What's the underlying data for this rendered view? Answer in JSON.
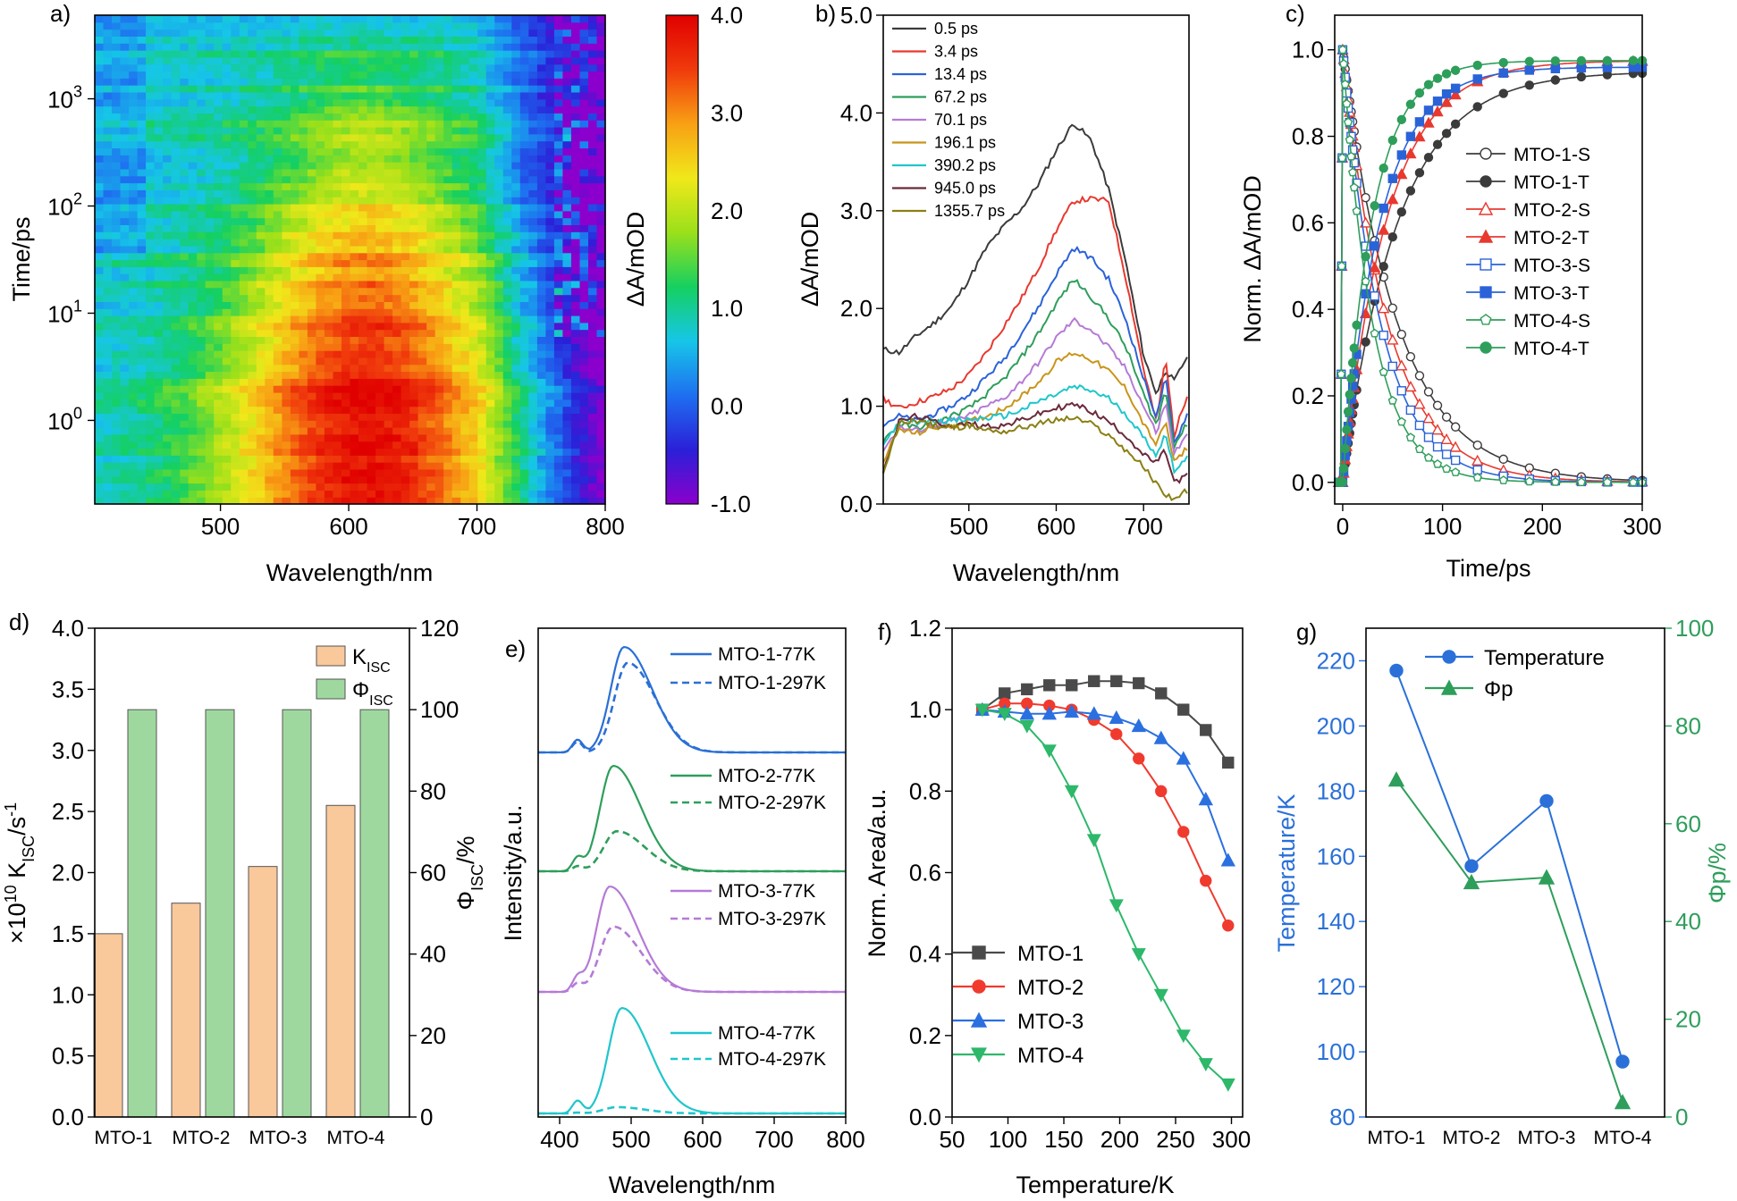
{
  "chart_data": [
    {
      "panel": "a)",
      "type": "heatmap",
      "xlabel": "Wavelength/nm",
      "ylabel": "Time/ps",
      "colorbar_label": "ΔA/mOD",
      "xlim": [
        402,
        800
      ],
      "ylim_log10": [
        -0.78,
        3.78
      ],
      "x_ticks": [
        500,
        600,
        700,
        800
      ],
      "x_tick_labels": [
        "500",
        "600",
        "700",
        "800"
      ],
      "y_ticks_log10": [
        0,
        1,
        2,
        3
      ],
      "y_tick_bases": [
        "10",
        "10",
        "10",
        "10"
      ],
      "y_tick_exps": [
        "0",
        "1",
        "2",
        "3"
      ],
      "colorbar_ticks": [
        4.0,
        3.0,
        2.0,
        1.0,
        0.0,
        -1.0
      ],
      "colorbar_tick_labels": [
        "4.0",
        "3.0",
        "2.0",
        "1.0",
        "0.0",
        "-1.0"
      ],
      "clim": [
        -1.0,
        4.0
      ],
      "colormap": [
        "#8B00CC",
        "#2A20D8",
        "#1E6FF0",
        "#16C6E8",
        "#15D060",
        "#9BE01A",
        "#F0E81A",
        "#F8A014",
        "#F03A0C",
        "#E00000"
      ],
      "note_signal_peak_nm": 620,
      "note_signal_peak_mOD": 4.0
    },
    {
      "panel": "b)",
      "type": "line",
      "xlabel": "Wavelength/nm",
      "ylabel": "ΔA/mOD",
      "xlim": [
        402,
        752
      ],
      "ylim": [
        0,
        5
      ],
      "x_ticks": [
        500,
        600,
        700
      ],
      "x_tick_labels": [
        "500",
        "600",
        "700"
      ],
      "y_ticks": [
        0,
        1,
        2,
        3,
        4,
        5
      ],
      "y_tick_labels": [
        "0.0",
        "1.0",
        "2.0",
        "3.0",
        "4.0",
        "5.0"
      ],
      "x": [
        402,
        420,
        440,
        460,
        480,
        500,
        520,
        540,
        560,
        580,
        600,
        620,
        640,
        660,
        680,
        700,
        715,
        725,
        735,
        752
      ],
      "series": [
        {
          "name": "0.5 ps",
          "color": "#3b3b3b",
          "values": [
            1.58,
            1.55,
            1.72,
            1.85,
            2.02,
            2.3,
            2.62,
            2.84,
            3.02,
            3.28,
            3.62,
            3.9,
            3.72,
            3.22,
            2.46,
            1.52,
            1.12,
            1.38,
            1.25,
            1.55
          ]
        },
        {
          "name": "3.4 ps",
          "color": "#e8392f",
          "values": [
            1.08,
            0.98,
            1.04,
            1.1,
            1.18,
            1.32,
            1.55,
            1.82,
            2.1,
            2.42,
            2.8,
            3.1,
            3.12,
            3.1,
            2.3,
            1.38,
            0.82,
            1.5,
            0.7,
            1.18
          ]
        },
        {
          "name": "13.4 ps",
          "color": "#2a63d8",
          "values": [
            0.82,
            0.9,
            0.85,
            0.92,
            1.0,
            1.12,
            1.3,
            1.48,
            1.75,
            2.02,
            2.35,
            2.62,
            2.52,
            2.3,
            1.88,
            1.28,
            0.88,
            1.3,
            0.62,
            0.96
          ]
        },
        {
          "name": "67.2 ps",
          "color": "#2e9e5b",
          "values": [
            0.65,
            0.82,
            0.78,
            0.82,
            0.9,
            0.98,
            1.12,
            1.28,
            1.5,
            1.75,
            2.05,
            2.3,
            2.12,
            1.9,
            1.6,
            1.12,
            0.8,
            1.18,
            0.6,
            0.85
          ]
        },
        {
          "name": "70.1 ps",
          "color": "#b57ad6",
          "values": [
            0.55,
            0.78,
            0.75,
            0.8,
            0.85,
            0.9,
            1.0,
            1.08,
            1.25,
            1.45,
            1.7,
            1.88,
            1.78,
            1.6,
            1.38,
            1.0,
            0.72,
            1.05,
            0.52,
            0.72
          ]
        },
        {
          "name": "196.1 ps",
          "color": "#c9951a",
          "values": [
            0.45,
            0.76,
            0.72,
            0.78,
            0.8,
            0.84,
            0.9,
            0.98,
            1.1,
            1.25,
            1.45,
            1.55,
            1.48,
            1.36,
            1.18,
            0.82,
            0.6,
            0.85,
            0.42,
            0.6
          ]
        },
        {
          "name": "390.2 ps",
          "color": "#1fc6cc",
          "values": [
            0.6,
            0.84,
            0.84,
            0.86,
            0.85,
            0.86,
            0.88,
            0.9,
            0.96,
            1.05,
            1.12,
            1.2,
            1.16,
            1.08,
            0.92,
            0.68,
            0.5,
            0.72,
            0.35,
            0.48
          ]
        },
        {
          "name": "945.0 ps",
          "color": "#6b2a3a",
          "values": [
            0.35,
            0.84,
            0.9,
            0.84,
            0.8,
            0.82,
            0.8,
            0.8,
            0.86,
            0.92,
            0.98,
            1.02,
            0.95,
            0.84,
            0.7,
            0.5,
            0.42,
            0.55,
            0.22,
            0.3
          ]
        },
        {
          "name": "1355.7 ps",
          "color": "#8a8014",
          "values": [
            0.3,
            0.82,
            0.86,
            0.8,
            0.78,
            0.8,
            0.76,
            0.74,
            0.78,
            0.82,
            0.86,
            0.88,
            0.82,
            0.7,
            0.55,
            0.38,
            0.2,
            0.1,
            0.05,
            0.15
          ]
        }
      ]
    },
    {
      "panel": "c)",
      "type": "line",
      "xlabel": "Time/ps",
      "ylabel": "Norm. ΔA/mOD",
      "xlim": [
        -8,
        300
      ],
      "ylim": [
        -0.05,
        1.08
      ],
      "x_ticks": [
        0,
        100,
        200,
        300
      ],
      "x_tick_labels": [
        "0",
        "100",
        "200",
        "300"
      ],
      "y_ticks": [
        0,
        0.2,
        0.4,
        0.6,
        0.8,
        1.0
      ],
      "y_tick_labels": [
        "0.0",
        "0.2",
        "0.4",
        "0.6",
        "0.8",
        "1.0"
      ],
      "series": [
        {
          "name": "MTO-1-S",
          "color": "#3b3b3b",
          "marker": "circle-open",
          "tau": 55,
          "end": 0
        },
        {
          "name": "MTO-1-T",
          "color": "#3b3b3b",
          "marker": "circle-filled",
          "tau": 55,
          "end": 0.95
        },
        {
          "name": "MTO-2-S",
          "color": "#e8392f",
          "marker": "triangle-open",
          "tau": 45,
          "end": 0
        },
        {
          "name": "MTO-2-T",
          "color": "#e8392f",
          "marker": "triangle-filled",
          "tau": 45,
          "end": 0.975
        },
        {
          "name": "MTO-3-S",
          "color": "#2a63d8",
          "marker": "square-open",
          "tau": 38,
          "end": 0
        },
        {
          "name": "MTO-3-T",
          "color": "#2a63d8",
          "marker": "square-filled",
          "tau": 38,
          "end": 0.96
        },
        {
          "name": "MTO-4-S",
          "color": "#2e9e5b",
          "marker": "pentagon-open",
          "tau": 30,
          "end": 0
        },
        {
          "name": "MTO-4-T",
          "color": "#2e9e5b",
          "marker": "circle-filled",
          "tau": 30,
          "end": 0.975
        }
      ]
    },
    {
      "panel": "d)",
      "type": "bar",
      "categories": [
        "MTO-1",
        "MTO-2",
        "MTO-3",
        "MTO-4"
      ],
      "ylabel_left_parts": [
        "×10",
        "10",
        " K",
        "ISC",
        "/s",
        "-1"
      ],
      "ylabel_right_parts": [
        "Φ",
        "ISC",
        "/%"
      ],
      "ylim_left": [
        0,
        4
      ],
      "ylim_right": [
        0,
        120
      ],
      "y_ticks_left": [
        0,
        0.5,
        1,
        1.5,
        2,
        2.5,
        3,
        3.5,
        4
      ],
      "y_tick_labels_left": [
        "0.0",
        "0.5",
        "1.0",
        "1.5",
        "2.0",
        "2.5",
        "3.0",
        "3.5",
        "4.0"
      ],
      "y_ticks_right": [
        0,
        20,
        40,
        60,
        80,
        100,
        120
      ],
      "y_tick_labels_right": [
        "0",
        "20",
        "40",
        "60",
        "80",
        "100",
        "120"
      ],
      "series": [
        {
          "name": "K",
          "sub": "ISC",
          "color": "#f9c89b",
          "axis": "left",
          "values": [
            1.5,
            1.75,
            2.05,
            2.55
          ]
        },
        {
          "name": "Φ",
          "sub": "ISC",
          "color": "#9fd89f",
          "axis": "right",
          "values": [
            100,
            100,
            100,
            100
          ]
        }
      ]
    },
    {
      "panel": "e)",
      "type": "line",
      "xlabel": "Wavelength/nm",
      "ylabel": "Intensity/a.u.",
      "xlim": [
        370,
        800
      ],
      "x_ticks": [
        400,
        500,
        600,
        700,
        800
      ],
      "x_tick_labels": [
        "400",
        "500",
        "600",
        "700",
        "800"
      ],
      "series": [
        {
          "name": "MTO-1-77K",
          "color": "#2a6fd6",
          "style": "solid",
          "peak": 490,
          "amp": 1.0,
          "offset": 3
        },
        {
          "name": "MTO-1-297K",
          "color": "#2a6fd6",
          "style": "dashed",
          "peak": 495,
          "amp": 0.85,
          "offset": 3
        },
        {
          "name": "MTO-2-77K",
          "color": "#2e9e5b",
          "style": "solid",
          "peak": 475,
          "amp": 1.0,
          "offset": 2
        },
        {
          "name": "MTO-2-297K",
          "color": "#2e9e5b",
          "style": "dashed",
          "peak": 480,
          "amp": 0.38,
          "offset": 2
        },
        {
          "name": "MTO-3-77K",
          "color": "#b57ad6",
          "style": "solid",
          "peak": 470,
          "amp": 1.0,
          "offset": 1
        },
        {
          "name": "MTO-3-297K",
          "color": "#b57ad6",
          "style": "dashed",
          "peak": 475,
          "amp": 0.62,
          "offset": 1
        },
        {
          "name": "MTO-4-77K",
          "color": "#1fc6cc",
          "style": "solid",
          "peak": 487,
          "amp": 1.0,
          "offset": 0
        },
        {
          "name": "MTO-4-297K",
          "color": "#1fc6cc",
          "style": "dashed",
          "peak": 480,
          "amp": 0.06,
          "offset": 0
        }
      ]
    },
    {
      "panel": "f)",
      "type": "line",
      "xlabel": "Temperature/K",
      "ylabel": "Norm. Area/a.u.",
      "xlim": [
        50,
        310
      ],
      "ylim": [
        0,
        1.2
      ],
      "x_ticks": [
        50,
        100,
        150,
        200,
        250,
        300
      ],
      "x_tick_labels": [
        "50",
        "100",
        "150",
        "200",
        "250",
        "300"
      ],
      "y_ticks": [
        0,
        0.2,
        0.4,
        0.6,
        0.8,
        1.0,
        1.2
      ],
      "y_tick_labels": [
        "0.0",
        "0.2",
        "0.4",
        "0.6",
        "0.8",
        "1.0",
        "1.2"
      ],
      "x": [
        77,
        97,
        117,
        137,
        157,
        177,
        197,
        217,
        237,
        257,
        277,
        297
      ],
      "series": [
        {
          "name": "MTO-1",
          "color": "#4a4a4a",
          "marker": "square",
          "values": [
            1.0,
            1.04,
            1.05,
            1.06,
            1.06,
            1.07,
            1.07,
            1.065,
            1.04,
            1.0,
            0.95,
            0.87
          ]
        },
        {
          "name": "MTO-2",
          "color": "#f03a2e",
          "marker": "circle",
          "values": [
            1.0,
            1.015,
            1.015,
            1.01,
            1.0,
            0.975,
            0.94,
            0.88,
            0.8,
            0.7,
            0.58,
            0.47
          ]
        },
        {
          "name": "MTO-3",
          "color": "#2a70e0",
          "marker": "triangle-up",
          "values": [
            1.0,
            0.995,
            0.99,
            0.99,
            0.995,
            0.99,
            0.98,
            0.96,
            0.93,
            0.88,
            0.78,
            0.63
          ]
        },
        {
          "name": "MTO-4",
          "color": "#2db86a",
          "marker": "triangle-down",
          "values": [
            1.0,
            0.99,
            0.96,
            0.9,
            0.8,
            0.68,
            0.52,
            0.4,
            0.3,
            0.2,
            0.13,
            0.08
          ]
        }
      ]
    },
    {
      "panel": "g)",
      "type": "line",
      "categories": [
        "MTO-1",
        "MTO-2",
        "MTO-3",
        "MTO-4"
      ],
      "ylabel_left": "Temperature/K",
      "ylabel_right": "Φp/%",
      "ylim_left": [
        80,
        230
      ],
      "ylim_right": [
        0,
        100
      ],
      "y_ticks_left": [
        80,
        100,
        120,
        140,
        160,
        180,
        200,
        220
      ],
      "y_tick_labels_left": [
        "80",
        "100",
        "120",
        "140",
        "160",
        "180",
        "200",
        "220"
      ],
      "y_ticks_right": [
        0,
        20,
        40,
        60,
        80,
        100
      ],
      "y_tick_labels_right": [
        "0",
        "20",
        "40",
        "60",
        "80",
        "100"
      ],
      "left_color": "#2a70d8",
      "right_color": "#2e9e5b",
      "series": [
        {
          "name": "Temperature",
          "color": "#2a70d8",
          "marker": "circle",
          "axis": "left",
          "values": [
            217,
            157,
            177,
            97
          ]
        },
        {
          "name": "Φp",
          "color": "#2e9e5b",
          "marker": "triangle-up",
          "axis": "right",
          "values": [
            69,
            48,
            49,
            3
          ]
        }
      ]
    }
  ]
}
